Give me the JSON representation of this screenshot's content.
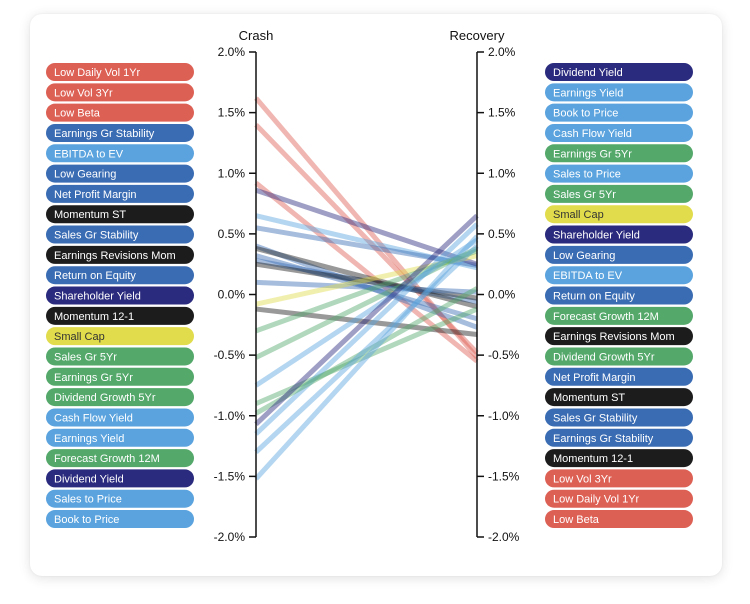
{
  "chart_data": {
    "type": "line",
    "axes": [
      "Crash",
      "Recovery"
    ],
    "ylim": [
      -2.0,
      2.0
    ],
    "tick_values": [
      2.0,
      1.5,
      1.0,
      0.5,
      0.0,
      -0.5,
      -1.0,
      -1.5,
      -2.0
    ],
    "tick_labels": [
      "2.0%",
      "1.5%",
      "1.0%",
      "0.5%",
      "0.0%",
      "-0.5%",
      "-1.0%",
      "-1.5%",
      "-2.0%"
    ],
    "colors": {
      "red": "#dd6055",
      "darkblue": "#3a6cb3",
      "lightblue": "#5aa3de",
      "black": "#1c1c1c",
      "navy": "#2a2a7e",
      "yellow": "#e0dc4c",
      "green": "#53a86a"
    },
    "left_legend": [
      {
        "label": "Low Daily Vol 1Yr",
        "color": "red"
      },
      {
        "label": "Low Vol 3Yr",
        "color": "red"
      },
      {
        "label": "Low Beta",
        "color": "red"
      },
      {
        "label": "Earnings Gr Stability",
        "color": "darkblue"
      },
      {
        "label": "EBITDA to EV",
        "color": "lightblue"
      },
      {
        "label": "Low Gearing",
        "color": "darkblue"
      },
      {
        "label": "Net Profit Margin",
        "color": "darkblue"
      },
      {
        "label": "Momentum ST",
        "color": "black"
      },
      {
        "label": "Sales Gr Stability",
        "color": "darkblue"
      },
      {
        "label": "Earnings Revisions Mom",
        "color": "black"
      },
      {
        "label": "Return on Equity",
        "color": "darkblue"
      },
      {
        "label": "Shareholder Yield",
        "color": "navy"
      },
      {
        "label": "Momentum 12-1",
        "color": "black"
      },
      {
        "label": "Small Cap",
        "color": "yellow"
      },
      {
        "label": "Sales Gr 5Yr",
        "color": "green"
      },
      {
        "label": "Earnings Gr 5Yr",
        "color": "green"
      },
      {
        "label": "Dividend Growth 5Yr",
        "color": "green"
      },
      {
        "label": "Cash Flow Yield",
        "color": "lightblue"
      },
      {
        "label": "Earnings Yield",
        "color": "lightblue"
      },
      {
        "label": "Forecast Growth 12M",
        "color": "green"
      },
      {
        "label": "Dividend Yield",
        "color": "navy"
      },
      {
        "label": "Sales to Price",
        "color": "lightblue"
      },
      {
        "label": "Book to Price",
        "color": "lightblue"
      }
    ],
    "right_legend": [
      {
        "label": "Dividend Yield",
        "color": "navy"
      },
      {
        "label": "Earnings Yield",
        "color": "lightblue"
      },
      {
        "label": "Book to Price",
        "color": "lightblue"
      },
      {
        "label": "Cash Flow Yield",
        "color": "lightblue"
      },
      {
        "label": "Earnings Gr 5Yr",
        "color": "green"
      },
      {
        "label": "Sales to Price",
        "color": "lightblue"
      },
      {
        "label": "Sales Gr 5Yr",
        "color": "green"
      },
      {
        "label": "Small Cap",
        "color": "yellow"
      },
      {
        "label": "Shareholder Yield",
        "color": "navy"
      },
      {
        "label": "Low Gearing",
        "color": "darkblue"
      },
      {
        "label": "EBITDA to EV",
        "color": "lightblue"
      },
      {
        "label": "Return on Equity",
        "color": "darkblue"
      },
      {
        "label": "Forecast Growth 12M",
        "color": "green"
      },
      {
        "label": "Earnings Revisions Mom",
        "color": "black"
      },
      {
        "label": "Dividend Growth 5Yr",
        "color": "green"
      },
      {
        "label": "Net Profit Margin",
        "color": "darkblue"
      },
      {
        "label": "Momentum ST",
        "color": "black"
      },
      {
        "label": "Sales Gr Stability",
        "color": "darkblue"
      },
      {
        "label": "Earnings Gr Stability",
        "color": "darkblue"
      },
      {
        "label": "Momentum 12-1",
        "color": "black"
      },
      {
        "label": "Low Vol 3Yr",
        "color": "red"
      },
      {
        "label": "Low Daily Vol 1Yr",
        "color": "red"
      },
      {
        "label": "Low Beta",
        "color": "red"
      }
    ],
    "series": [
      {
        "name": "Low Daily Vol 1Yr",
        "color": "red",
        "crash": 1.62,
        "recovery": -0.52
      },
      {
        "name": "Low Vol 3Yr",
        "color": "red",
        "crash": 1.4,
        "recovery": -0.48
      },
      {
        "name": "Low Beta",
        "color": "red",
        "crash": 0.92,
        "recovery": -0.55
      },
      {
        "name": "Earnings Gr Stability",
        "color": "darkblue",
        "crash": 0.4,
        "recovery": -0.27
      },
      {
        "name": "EBITDA to EV",
        "color": "lightblue",
        "crash": 0.65,
        "recovery": 0.22
      },
      {
        "name": "Low Gearing",
        "color": "darkblue",
        "crash": 0.55,
        "recovery": 0.24
      },
      {
        "name": "Net Profit Margin",
        "color": "darkblue",
        "crash": 0.28,
        "recovery": -0.06
      },
      {
        "name": "Momentum ST",
        "color": "black",
        "crash": 0.38,
        "recovery": -0.1
      },
      {
        "name": "Sales Gr Stability",
        "color": "darkblue",
        "crash": 0.32,
        "recovery": -0.2
      },
      {
        "name": "Earnings Revisions Mom",
        "color": "black",
        "crash": 0.25,
        "recovery": -0.03
      },
      {
        "name": "Return on Equity",
        "color": "darkblue",
        "crash": 0.1,
        "recovery": 0.02
      },
      {
        "name": "Shareholder Yield",
        "color": "navy",
        "crash": 0.86,
        "recovery": 0.25
      },
      {
        "name": "Momentum 12-1",
        "color": "black",
        "crash": -0.12,
        "recovery": -0.33
      },
      {
        "name": "Small Cap",
        "color": "yellow",
        "crash": -0.08,
        "recovery": 0.32
      },
      {
        "name": "Sales Gr 5Yr",
        "color": "green",
        "crash": -0.3,
        "recovery": 0.36
      },
      {
        "name": "Earnings Gr 5Yr",
        "color": "green",
        "crash": -0.52,
        "recovery": 0.38
      },
      {
        "name": "Dividend Growth 5Yr",
        "color": "green",
        "crash": -0.9,
        "recovery": -0.12
      },
      {
        "name": "Cash Flow Yield",
        "color": "lightblue",
        "crash": -0.75,
        "recovery": 0.45
      },
      {
        "name": "Earnings Yield",
        "color": "lightblue",
        "crash": -1.15,
        "recovery": 0.58
      },
      {
        "name": "Forecast Growth 12M",
        "color": "green",
        "crash": -0.98,
        "recovery": 0.05
      },
      {
        "name": "Dividend Yield",
        "color": "navy",
        "crash": -1.07,
        "recovery": 0.65
      },
      {
        "name": "Sales to Price",
        "color": "lightblue",
        "crash": -1.3,
        "recovery": 0.4
      },
      {
        "name": "Book to Price",
        "color": "lightblue",
        "crash": -1.52,
        "recovery": 0.48
      }
    ]
  }
}
